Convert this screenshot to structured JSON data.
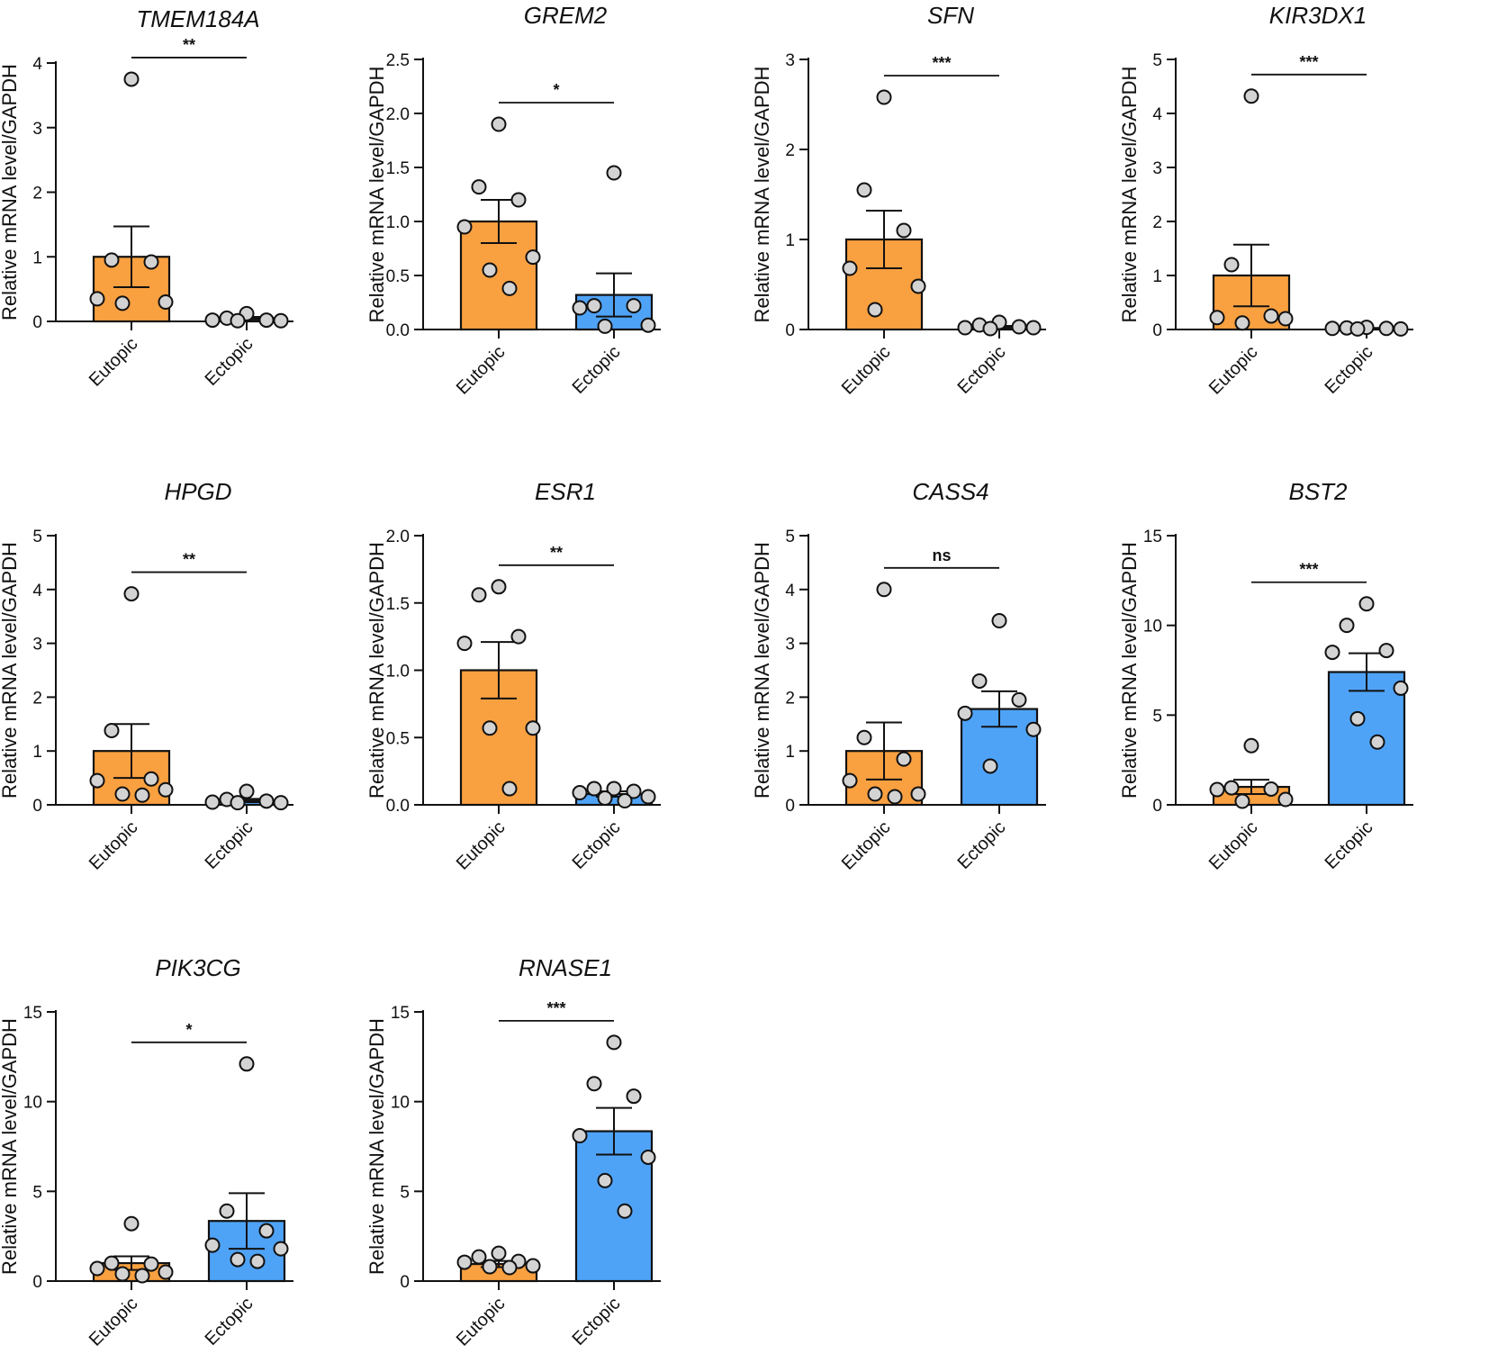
{
  "figure": {
    "y_axis_label": "Relative mRNA level/GAPDH",
    "categories": [
      "Eutopic",
      "Ectopic"
    ],
    "colors": {
      "eutopic": "#F9A040",
      "ectopic": "#4FA3F7",
      "point_fill": "#D3D3D3",
      "ink": "#111111"
    }
  },
  "chart_data": [
    {
      "type": "bar",
      "title": "TMEM184A",
      "ylabel": "Relative mRNA level/GAPDH",
      "categories": [
        "Eutopic",
        "Ectopic"
      ],
      "ylim": [
        0,
        4
      ],
      "yticks": [
        0,
        1,
        2,
        3,
        4
      ],
      "ytick_labels": [
        "0",
        "1",
        "2",
        "3",
        "4"
      ],
      "values": [
        1.0,
        0.05
      ],
      "sem": [
        0.47,
        0.02
      ],
      "points": [
        [
          3.75,
          0.95,
          0.92,
          0.35,
          0.3,
          0.28
        ],
        [
          0.12,
          0.05,
          0.02,
          0.02,
          0.01,
          0.01
        ]
      ],
      "significance": "**"
    },
    {
      "type": "bar",
      "title": "GREM2",
      "ylabel": "Relative mRNA level/GAPDH",
      "categories": [
        "Eutopic",
        "Ectopic"
      ],
      "ylim": [
        0,
        2.5
      ],
      "yticks": [
        0,
        0.5,
        1,
        1.5,
        2,
        2.5
      ],
      "ytick_labels": [
        "0.0",
        "0.5",
        "1.0",
        "1.5",
        "2.0",
        "2.5"
      ],
      "values": [
        1.0,
        0.32
      ],
      "sem": [
        0.2,
        0.2
      ],
      "points": [
        [
          1.9,
          1.32,
          1.2,
          0.95,
          0.67,
          0.55,
          0.38
        ],
        [
          1.45,
          0.22,
          0.22,
          0.2,
          0.04,
          0.03
        ]
      ],
      "significance": "*"
    },
    {
      "type": "bar",
      "title": "SFN",
      "ylabel": "Relative mRNA level/GAPDH",
      "categories": [
        "Eutopic",
        "Ectopic"
      ],
      "ylim": [
        0,
        3
      ],
      "yticks": [
        0,
        1,
        2,
        3
      ],
      "ytick_labels": [
        "0",
        "1",
        "2",
        "3"
      ],
      "values": [
        1.0,
        0.03
      ],
      "sem": [
        0.32,
        0.01
      ],
      "points": [
        [
          2.58,
          1.55,
          1.1,
          0.68,
          0.48,
          0.22
        ],
        [
          0.08,
          0.05,
          0.03,
          0.02,
          0.02,
          0.01
        ]
      ],
      "significance": "***"
    },
    {
      "type": "bar",
      "title": "KIR3DX1",
      "ylabel": "Relative mRNA level/GAPDH",
      "categories": [
        "Eutopic",
        "Ectopic"
      ],
      "ylim": [
        0,
        5
      ],
      "yticks": [
        0,
        1,
        2,
        3,
        4,
        5
      ],
      "ytick_labels": [
        "0",
        "1",
        "2",
        "3",
        "4",
        "5"
      ],
      "values": [
        1.0,
        0.02
      ],
      "sem": [
        0.57,
        0.01
      ],
      "points": [
        [
          4.32,
          1.2,
          0.25,
          0.22,
          0.2,
          0.12
        ],
        [
          0.04,
          0.03,
          0.02,
          0.02,
          0.01,
          0.01
        ]
      ],
      "significance": "***"
    },
    {
      "type": "bar",
      "title": "HPGD",
      "ylabel": "Relative mRNA level/GAPDH",
      "categories": [
        "Eutopic",
        "Ectopic"
      ],
      "ylim": [
        0,
        5
      ],
      "yticks": [
        0,
        1,
        2,
        3,
        4,
        5
      ],
      "ytick_labels": [
        "0",
        "1",
        "2",
        "3",
        "4",
        "5"
      ],
      "values": [
        1.0,
        0.08
      ],
      "sem": [
        0.5,
        0.03
      ],
      "points": [
        [
          3.92,
          1.38,
          0.48,
          0.45,
          0.28,
          0.2,
          0.18
        ],
        [
          0.25,
          0.1,
          0.07,
          0.05,
          0.04,
          0.04
        ]
      ],
      "significance": "**"
    },
    {
      "type": "bar",
      "title": "ESR1",
      "ylabel": "Relative mRNA level/GAPDH",
      "categories": [
        "Eutopic",
        "Ectopic"
      ],
      "ylim": [
        0,
        2
      ],
      "yticks": [
        0,
        0.5,
        1,
        1.5,
        2
      ],
      "ytick_labels": [
        "0.0",
        "0.5",
        "1.0",
        "1.5",
        "2.0"
      ],
      "values": [
        1.0,
        0.08
      ],
      "sem": [
        0.21,
        0.02
      ],
      "points": [
        [
          1.62,
          1.56,
          1.25,
          1.2,
          0.57,
          0.57,
          0.12
        ],
        [
          0.12,
          0.12,
          0.1,
          0.09,
          0.06,
          0.05,
          0.03
        ]
      ],
      "significance": "**"
    },
    {
      "type": "bar",
      "title": "CASS4",
      "ylabel": "Relative mRNA level/GAPDH",
      "categories": [
        "Eutopic",
        "Ectopic"
      ],
      "ylim": [
        0,
        5
      ],
      "yticks": [
        0,
        1,
        2,
        3,
        4,
        5
      ],
      "ytick_labels": [
        "0",
        "1",
        "2",
        "3",
        "4",
        "5"
      ],
      "values": [
        1.0,
        1.78
      ],
      "sem": [
        0.53,
        0.33
      ],
      "points": [
        [
          4.0,
          1.25,
          0.85,
          0.45,
          0.2,
          0.2,
          0.15
        ],
        [
          3.42,
          2.3,
          1.95,
          1.7,
          1.4,
          0.72
        ]
      ],
      "significance": "ns"
    },
    {
      "type": "bar",
      "title": "BST2",
      "ylabel": "Relative mRNA level/GAPDH",
      "categories": [
        "Eutopic",
        "Ectopic"
      ],
      "ylim": [
        0,
        15
      ],
      "yticks": [
        0,
        5,
        10,
        15
      ],
      "ytick_labels": [
        "0",
        "5",
        "10",
        "15"
      ],
      "values": [
        1.0,
        7.4
      ],
      "sem": [
        0.4,
        1.05
      ],
      "points": [
        [
          3.3,
          0.95,
          0.88,
          0.85,
          0.3,
          0.2
        ],
        [
          11.2,
          10.0,
          8.6,
          8.5,
          6.5,
          4.8,
          3.5
        ]
      ],
      "significance": "***"
    },
    {
      "type": "bar",
      "title": "PIK3CG",
      "ylabel": "Relative mRNA level/GAPDH",
      "categories": [
        "Eutopic",
        "Ectopic"
      ],
      "ylim": [
        0,
        15
      ],
      "yticks": [
        0,
        5,
        10,
        15
      ],
      "ytick_labels": [
        "0",
        "5",
        "10",
        "15"
      ],
      "values": [
        1.0,
        3.35
      ],
      "sem": [
        0.38,
        1.55
      ],
      "points": [
        [
          3.2,
          1.0,
          0.95,
          0.7,
          0.5,
          0.4,
          0.3
        ],
        [
          12.1,
          3.9,
          2.8,
          2.0,
          1.8,
          1.2,
          1.1
        ]
      ],
      "significance": "*"
    },
    {
      "type": "bar",
      "title": "RNASE1",
      "ylabel": "Relative mRNA level/GAPDH",
      "categories": [
        "Eutopic",
        "Ectopic"
      ],
      "ylim": [
        0,
        15
      ],
      "yticks": [
        0,
        5,
        10,
        15
      ],
      "ytick_labels": [
        "0",
        "5",
        "10",
        "15"
      ],
      "values": [
        0.95,
        8.35
      ],
      "sem": [
        0.17,
        1.3
      ],
      "points": [
        [
          1.55,
          1.35,
          1.1,
          1.05,
          0.85,
          0.8,
          0.75
        ],
        [
          13.3,
          11.0,
          10.3,
          8.1,
          6.9,
          5.6,
          3.9
        ]
      ],
      "significance": "***"
    }
  ]
}
